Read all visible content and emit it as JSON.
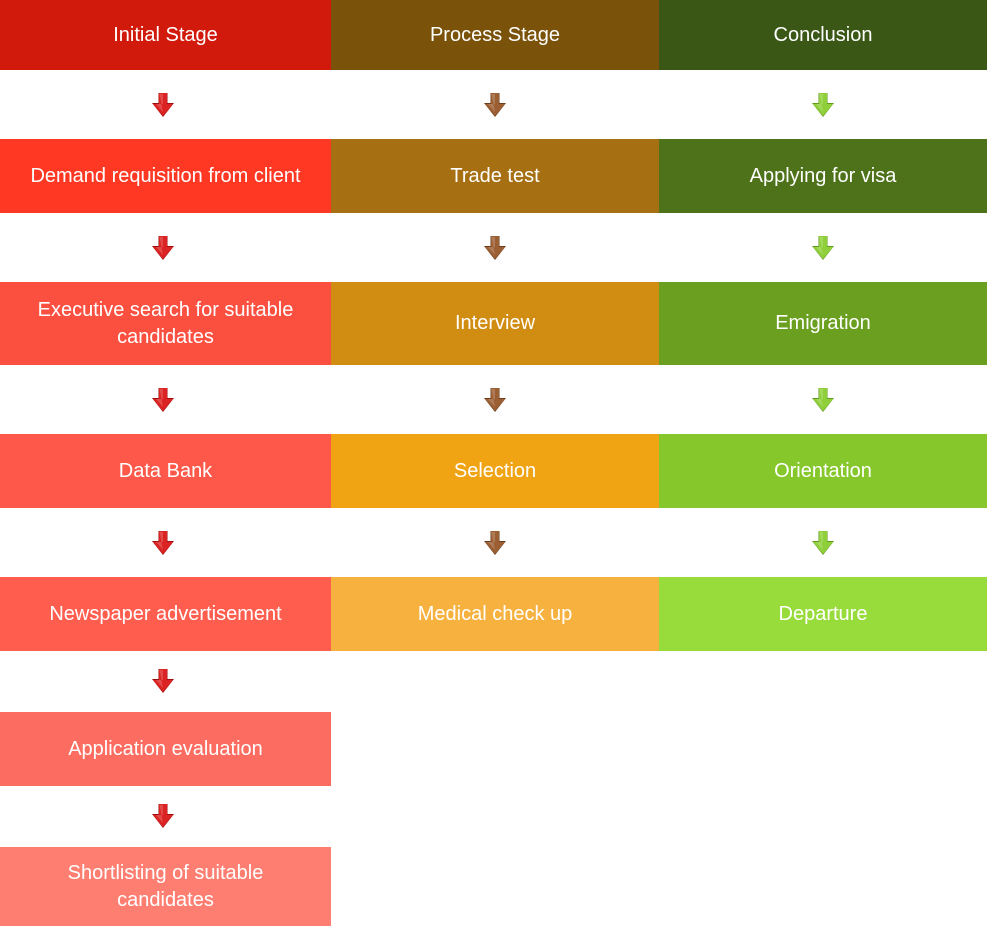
{
  "columns": [
    {
      "header": "Initial Stage",
      "header_color": "#d21a0c",
      "arrow_color": "#dc2323",
      "arrow_shade": "#9e1010",
      "steps": [
        {
          "label": "Demand requisition from client",
          "color": "#ff3823"
        },
        {
          "label": "Executive search for suitable candidates",
          "color": "#fb4f40"
        },
        {
          "label": "Data Bank",
          "color": "#fd584a"
        },
        {
          "label": "Newspaper advertisement",
          "color": "#ff5e4f"
        },
        {
          "label": "Application evaluation",
          "color": "#fc6c60"
        },
        {
          "label": "Shortlisting of suitable candidates",
          "color": "#fe7f71"
        }
      ]
    },
    {
      "header": "Process Stage",
      "header_color": "#7a5209",
      "arrow_color": "#9c5f34",
      "arrow_shade": "#6a3d1c",
      "steps": [
        {
          "label": "Trade test",
          "color": "#a66f12"
        },
        {
          "label": "Interview",
          "color": "#d18c12"
        },
        {
          "label": "Selection",
          "color": "#f0a414"
        },
        {
          "label": "Medical check up",
          "color": "#f7b13f"
        }
      ]
    },
    {
      "header": "Conclusion",
      "header_color": "#3a5716",
      "arrow_color": "#8fcf3a",
      "arrow_shade": "#5f9a1c",
      "steps": [
        {
          "label": "Applying for visa",
          "color": "#4e7219"
        },
        {
          "label": "Emigration",
          "color": "#6a9f20"
        },
        {
          "label": "Orientation",
          "color": "#86c82c"
        },
        {
          "label": "Departure",
          "color": "#98dc3c"
        }
      ]
    }
  ]
}
